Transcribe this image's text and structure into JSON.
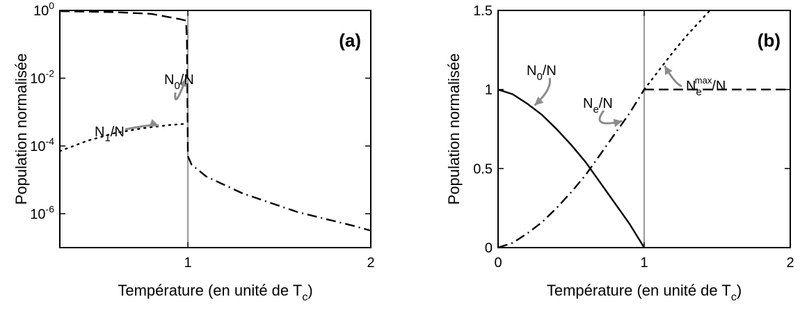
{
  "chart_data": [
    {
      "type": "line",
      "panel_label": "(a)",
      "xlabel": "Température (en unité de T",
      "xlabel_sub": "c",
      "xlabel_close": ")",
      "ylabel": "Population normalisée",
      "xlim": [
        0.3,
        2
      ],
      "ylim_log10": [
        -7,
        0
      ],
      "y_scale": "log",
      "x_ticks": [
        {
          "value": 1,
          "label": "1"
        },
        {
          "value": 2,
          "label": "2"
        }
      ],
      "y_ticks": [
        {
          "exp": 0,
          "base": "10",
          "sup": "0"
        },
        {
          "exp": -2,
          "base": "10",
          "sup": "-2"
        },
        {
          "exp": -4,
          "base": "10",
          "sup": "-4"
        },
        {
          "exp": -6,
          "base": "10",
          "sup": "-6"
        }
      ],
      "vline_x": 1,
      "series": [
        {
          "id": "n0",
          "style": "dashed",
          "x": [
            0.3,
            0.6,
            0.8,
            0.95,
            0.99,
            0.995,
            1.0
          ],
          "log10y": [
            -0.02,
            -0.05,
            -0.1,
            -0.25,
            -0.3,
            -0.9,
            -4.3
          ]
        },
        {
          "id": "n1",
          "style": "dotted",
          "x": [
            0.3,
            0.45,
            0.6,
            0.75,
            0.9,
            0.98
          ],
          "log10y": [
            -4.15,
            -3.85,
            -3.62,
            -3.48,
            -3.38,
            -3.35
          ]
        },
        {
          "id": "ne",
          "style": "dashdot",
          "x": [
            1.0,
            1.02,
            1.1,
            1.3,
            1.6,
            1.9,
            2.0
          ],
          "log10y": [
            -4.3,
            -4.55,
            -4.9,
            -5.4,
            -5.95,
            -6.35,
            -6.5
          ]
        }
      ],
      "annotations": [
        {
          "id": "n0-label",
          "base": "N",
          "sub": "0",
          "tail": "/N",
          "target": {
            "x": 0.99,
            "log10y": -2.0
          }
        },
        {
          "id": "n1-label",
          "base": "N",
          "sub": "1",
          "tail": "/N",
          "target": {
            "x": 0.84,
            "log10y": -3.4
          }
        }
      ]
    },
    {
      "type": "line",
      "panel_label": "(b)",
      "xlabel": "Température (en unité de T",
      "xlabel_sub": "c",
      "xlabel_close": ")",
      "ylabel": "Population normalisée",
      "xlim": [
        0,
        2
      ],
      "ylim": [
        0,
        1.5
      ],
      "x_ticks": [
        {
          "value": 0,
          "label": "0"
        },
        {
          "value": 1,
          "label": "1"
        },
        {
          "value": 2,
          "label": "2"
        }
      ],
      "y_ticks": [
        {
          "value": 0,
          "label": "0"
        },
        {
          "value": 0.5,
          "label": "0.5"
        },
        {
          "value": 1,
          "label": "1"
        },
        {
          "value": 1.5,
          "label": "1.5"
        }
      ],
      "vline_x": 1,
      "series": [
        {
          "id": "n0",
          "style": "solid",
          "x": [
            0,
            0.1,
            0.2,
            0.3,
            0.4,
            0.5,
            0.6,
            0.7,
            0.8,
            0.9,
            1.0
          ],
          "y": [
            1.0,
            0.97,
            0.91,
            0.84,
            0.75,
            0.65,
            0.54,
            0.41,
            0.28,
            0.15,
            0.0
          ]
        },
        {
          "id": "ne",
          "style": "dashdot",
          "x": [
            0,
            0.1,
            0.2,
            0.3,
            0.4,
            0.5,
            0.6,
            0.7,
            0.8,
            0.9,
            1.0
          ],
          "y": [
            0.0,
            0.03,
            0.09,
            0.16,
            0.25,
            0.35,
            0.46,
            0.59,
            0.72,
            0.85,
            1.0
          ]
        },
        {
          "id": "n0-flat",
          "style": "dashed",
          "x": [
            1.0,
            2.0
          ],
          "y": [
            1.0,
            1.0
          ]
        },
        {
          "id": "nemax",
          "style": "dotted",
          "x": [
            1.0,
            1.1,
            1.2,
            1.3,
            1.4,
            1.5
          ],
          "y": [
            1.0,
            1.12,
            1.24,
            1.35,
            1.45,
            1.55
          ]
        }
      ],
      "annotations": [
        {
          "id": "n0-label",
          "base": "N",
          "sub": "0",
          "tail": "/N",
          "target": {
            "x": 0.25,
            "y": 0.9
          }
        },
        {
          "id": "ne-label",
          "base": "N",
          "sub": "e",
          "tail": "/N",
          "target": {
            "x": 0.85,
            "y": 0.8
          }
        },
        {
          "id": "nemax-label",
          "base": "N",
          "sub": "e",
          "sup": "max",
          "tail": "/N",
          "target": {
            "x": 1.14,
            "y": 1.15
          }
        }
      ]
    }
  ]
}
